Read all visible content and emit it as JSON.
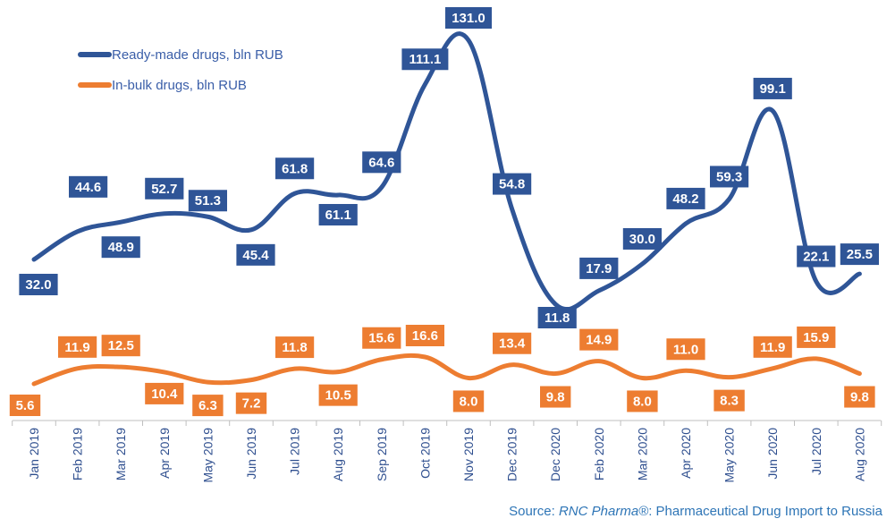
{
  "chart_data": {
    "type": "line",
    "categories": [
      "Jan 2019",
      "Feb 2019",
      "Mar 2019",
      "Apr 2019",
      "May 2019",
      "Jun 2019",
      "Jul 2019",
      "Aug 2019",
      "Sep 2019",
      "Oct 2019",
      "Nov 2019",
      "Dec 2019",
      "Dec 2020",
      "Feb 2020",
      "Mar 2020",
      "Apr 2020",
      "May 2020",
      "Jun 2020",
      "Jul 2020",
      "Aug 2020"
    ],
    "series": [
      {
        "name": "Ready-made drugs, bln RUB",
        "color": "#2f5597",
        "values": [
          32.0,
          44.6,
          48.9,
          52.7,
          51.3,
          45.4,
          61.8,
          61.1,
          64.6,
          111.1,
          131.0,
          54.8,
          11.8,
          17.9,
          30.0,
          48.2,
          59.3,
          99.1,
          22.1,
          25.5
        ],
        "labels": [
          "32.0",
          "44.6",
          "48.9",
          "52.7",
          "51.3",
          "45.4",
          "61.8",
          "61.1",
          "64.6",
          "111.1",
          "131.0",
          "54.8",
          "11.8",
          "17.9",
          "30.0",
          "48.2",
          "59.3",
          "99.1",
          "22.1",
          "25.5"
        ]
      },
      {
        "name": "In-bulk drugs, bln RUB",
        "color": "#ed7d31",
        "values": [
          5.6,
          11.9,
          12.5,
          10.4,
          6.3,
          7.2,
          11.8,
          10.5,
          15.6,
          16.6,
          8.0,
          13.4,
          9.8,
          14.9,
          8.0,
          11.0,
          8.3,
          11.9,
          15.9,
          9.8
        ],
        "labels": [
          "5.6",
          "11.9",
          "12.5",
          "10.4",
          "6.3",
          "7.2",
          "11.8",
          "10.5",
          "15.6",
          "16.6",
          "8.0",
          "13.4",
          "9.8",
          "14.9",
          "8.0",
          "11.0",
          "8.3",
          "11.9",
          "15.9",
          "9.8"
        ]
      }
    ],
    "legend_position": "top-left",
    "grid": false,
    "source_prefix": "Source: ",
    "source_brand": "RNC Pharma®",
    "source_suffix": ": Pharmaceutical Drug Import to Russia"
  }
}
